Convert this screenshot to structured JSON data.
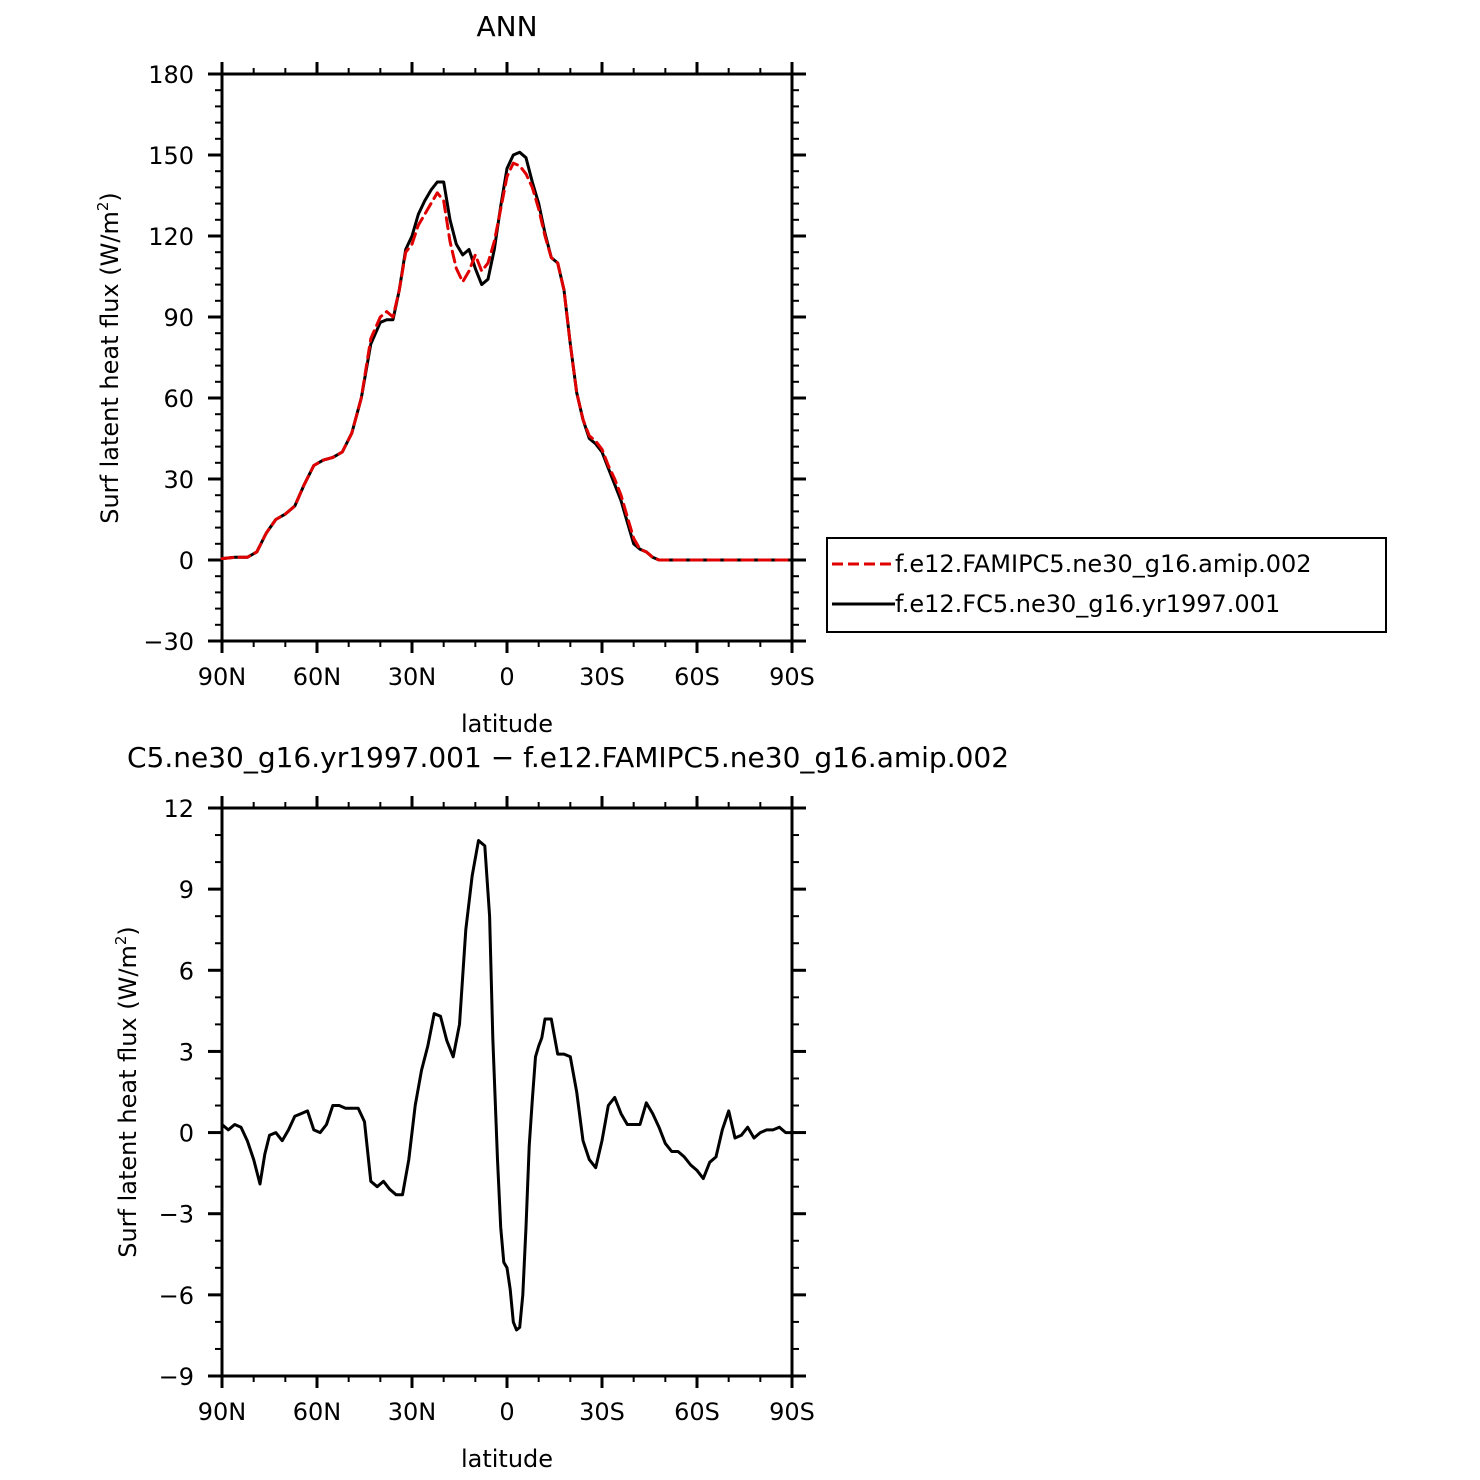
{
  "chart_data": [
    {
      "type": "line",
      "title": "ANN",
      "xlabel": "latitude",
      "ylabel": "Surf latent heat flux (W/m²)",
      "ylabel_base": "Surf latent heat flux (W/m",
      "ylabel_sup": "2",
      "ylabel_close": ")",
      "xlim": [
        90,
        -90
      ],
      "ylim": [
        -30,
        180
      ],
      "xticks": [
        90,
        60,
        30,
        0,
        -30,
        -60,
        -90
      ],
      "xtick_labels": [
        "90N",
        "60N",
        "30N",
        "0",
        "30S",
        "60S",
        "90S"
      ],
      "yticks": [
        -30,
        0,
        30,
        60,
        90,
        120,
        150,
        180
      ],
      "ytick_labels": [
        "−30",
        "0",
        "30",
        "60",
        "90",
        "120",
        "150",
        "180"
      ],
      "legend_position": "right, outside plot",
      "series": [
        {
          "name": "f.e12.FAMIPC5.ne30_g16.amip.002",
          "color": "#e00000",
          "dash": "dashed",
          "x": [
            90,
            86,
            82,
            79,
            76,
            73,
            70,
            67,
            64,
            61,
            58,
            55,
            52,
            49,
            46,
            43,
            40,
            38,
            36,
            34,
            32,
            30,
            28,
            26,
            24,
            22,
            20,
            18,
            16,
            14,
            12,
            10,
            8,
            6,
            4,
            2,
            0,
            -2,
            -4,
            -6,
            -8,
            -10,
            -12,
            -14,
            -16,
            -18,
            -20,
            -22,
            -24,
            -26,
            -28,
            -30,
            -32,
            -34,
            -36,
            -38,
            -40,
            -42,
            -44,
            -46,
            -48,
            -50,
            -52,
            -54,
            -56,
            -58,
            -60,
            -62,
            -64,
            -66,
            -68,
            -70,
            -72,
            -74,
            -76,
            -78,
            -80,
            -82,
            -84,
            -86,
            -88,
            -90
          ],
          "y": [
            0.5,
            1,
            1,
            3,
            10,
            15,
            17,
            20,
            28,
            35,
            37,
            38,
            40,
            47,
            60,
            82,
            90,
            92,
            90,
            100,
            114,
            117,
            124,
            128,
            132,
            136,
            133,
            118,
            108,
            103,
            107,
            113,
            107,
            110,
            118,
            130,
            142,
            147,
            146,
            143,
            138,
            130,
            120,
            112,
            110,
            100,
            80,
            62,
            52,
            46,
            44,
            41,
            35,
            30,
            24,
            16,
            8,
            4,
            3,
            1,
            0,
            0,
            0,
            0,
            0,
            0,
            0,
            0,
            0,
            0,
            0,
            0,
            0,
            0,
            0,
            0,
            0,
            0,
            0,
            0,
            0,
            0
          ]
        },
        {
          "name": "f.e12.FC5.ne30_g16.yr1997.001",
          "color": "#000000",
          "dash": "solid",
          "x": [
            90,
            86,
            82,
            79,
            76,
            73,
            70,
            67,
            64,
            61,
            58,
            55,
            52,
            49,
            46,
            43,
            40,
            38,
            36,
            34,
            32,
            30,
            28,
            26,
            24,
            22,
            20,
            18,
            16,
            14,
            12,
            10,
            8,
            6,
            4,
            2,
            0,
            -2,
            -4,
            -6,
            -8,
            -10,
            -12,
            -14,
            -16,
            -18,
            -20,
            -22,
            -24,
            -26,
            -28,
            -30,
            -32,
            -34,
            -36,
            -38,
            -40,
            -42,
            -44,
            -46,
            -48,
            -50,
            -52,
            -54,
            -56,
            -58,
            -60,
            -62,
            -64,
            -66,
            -68,
            -70,
            -72,
            -74,
            -76,
            -78,
            -80,
            -82,
            -84,
            -86,
            -88,
            -90
          ],
          "y": [
            0.5,
            1,
            1,
            3,
            10,
            15,
            17,
            20,
            28,
            35,
            37,
            38,
            40,
            47,
            60,
            80,
            88,
            89,
            89,
            100,
            115,
            120,
            128,
            133,
            137,
            140,
            140,
            126,
            117,
            113,
            115,
            108,
            102,
            104,
            115,
            131,
            145,
            150,
            151,
            149,
            140,
            132,
            121,
            112,
            110,
            100,
            80,
            62,
            52,
            45,
            43,
            40,
            34,
            28,
            22,
            14,
            6,
            4,
            3,
            1,
            0,
            0,
            0,
            0,
            0,
            0,
            0,
            0,
            0,
            0,
            0,
            0,
            0,
            0,
            0,
            0,
            0,
            0,
            0,
            0,
            0,
            0
          ]
        }
      ]
    },
    {
      "type": "line",
      "title": "C5.ne30_g16.yr1997.001 − f.e12.FAMIPC5.ne30_g16.amip.002",
      "xlabel": "latitude",
      "ylabel": "Surf latent heat flux (W/m²)",
      "ylabel_base": "Surf latent heat flux (W/m",
      "ylabel_sup": "2",
      "ylabel_close": ")",
      "xlim": [
        90,
        -90
      ],
      "ylim": [
        -9,
        12
      ],
      "xticks": [
        90,
        60,
        30,
        0,
        -30,
        -60,
        -90
      ],
      "xtick_labels": [
        "90N",
        "60N",
        "30N",
        "0",
        "30S",
        "60S",
        "90S"
      ],
      "yticks": [
        -9,
        -6,
        -3,
        0,
        3,
        6,
        9,
        12
      ],
      "ytick_labels": [
        "−9",
        "−6",
        "−3",
        "0",
        "3",
        "6",
        "9",
        "12"
      ],
      "series": [
        {
          "color": "#000000",
          "dash": "solid",
          "x": [
            90,
            88,
            86,
            84,
            82,
            80,
            78,
            76.5,
            75,
            73,
            71,
            69,
            67,
            65,
            63,
            61,
            59,
            57,
            55,
            53,
            51,
            49,
            47,
            45,
            43,
            41,
            39,
            37,
            35,
            33,
            31,
            29,
            27,
            25,
            23,
            21,
            19,
            17,
            15,
            13,
            11,
            9,
            7,
            5.5,
            4.5,
            3,
            2,
            1,
            0,
            -1,
            -2,
            -3,
            -4,
            -5,
            -6,
            -7,
            -8,
            -9,
            -10,
            -11,
            -12,
            -14,
            -16,
            -18,
            -20,
            -22,
            -24,
            -26,
            -28,
            -30,
            -32,
            -34,
            -36,
            -38,
            -40,
            -42,
            -44,
            -46,
            -48,
            -50,
            -52,
            -54,
            -56,
            -58,
            -60,
            -62,
            -64,
            -66,
            -68,
            -70,
            -72,
            -74,
            -76,
            -78,
            -80,
            -82,
            -84,
            -86,
            -88,
            -90
          ],
          "y": [
            0.3,
            0.1,
            0.3,
            0.2,
            -0.3,
            -1.0,
            -1.9,
            -0.8,
            -0.1,
            0.0,
            -0.3,
            0.1,
            0.6,
            0.7,
            0.8,
            0.1,
            0.0,
            0.3,
            1.0,
            1.0,
            0.9,
            0.9,
            0.9,
            0.4,
            -1.8,
            -2.0,
            -1.8,
            -2.1,
            -2.3,
            -2.3,
            -1.0,
            1.0,
            2.3,
            3.2,
            4.4,
            4.3,
            3.4,
            2.8,
            4.0,
            7.5,
            9.5,
            10.8,
            10.6,
            8.0,
            3.5,
            -1.0,
            -3.5,
            -4.8,
            -5.0,
            -5.8,
            -7.0,
            -7.3,
            -7.2,
            -6.0,
            -3.5,
            -0.5,
            1.2,
            2.8,
            3.2,
            3.5,
            4.2,
            4.2,
            2.9,
            2.9,
            2.8,
            1.5,
            -0.3,
            -1.0,
            -1.3,
            -0.3,
            1.0,
            1.3,
            0.7,
            0.3,
            0.3,
            0.3,
            1.1,
            0.7,
            0.2,
            -0.4,
            -0.7,
            -0.7,
            -0.9,
            -1.2,
            -1.4,
            -1.7,
            -1.1,
            -0.9,
            0.1,
            0.8,
            -0.2,
            -0.1,
            0.2,
            -0.2,
            0.0,
            0.1,
            0.1,
            0.2,
            0.0,
            0.0
          ]
        }
      ]
    }
  ]
}
